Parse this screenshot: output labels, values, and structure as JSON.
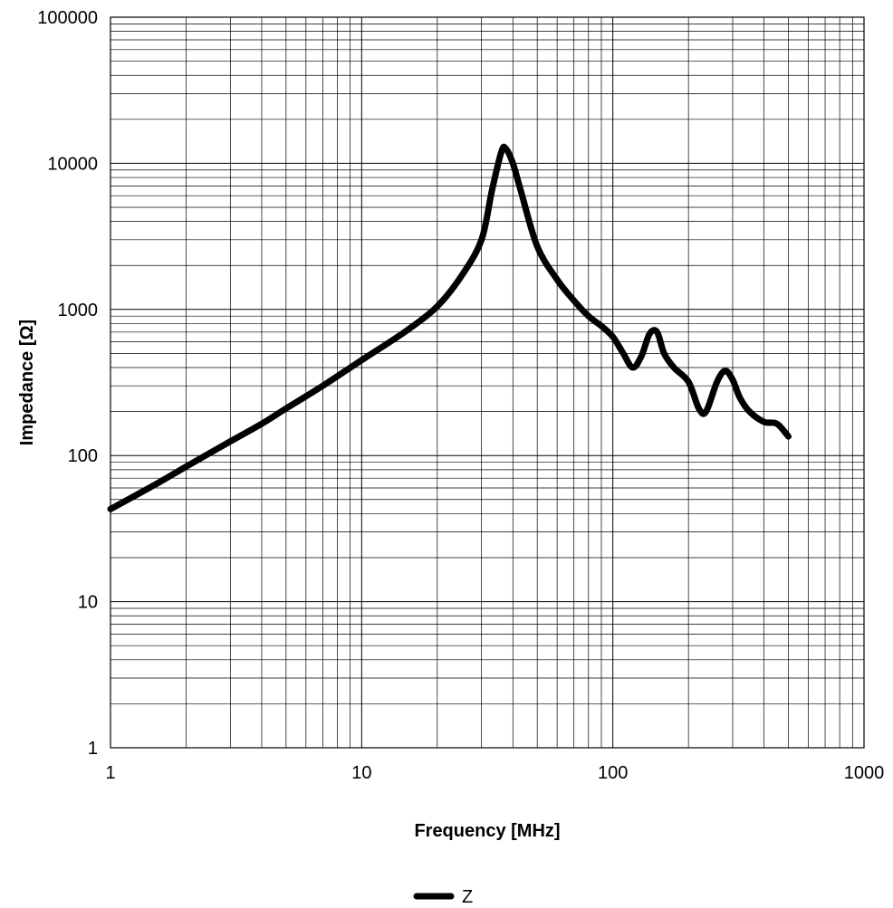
{
  "chart_data": {
    "type": "line",
    "title": "",
    "xlabel": "Frequency [MHz]",
    "ylabel": "Impedance [Ω]",
    "x_scale": "log",
    "y_scale": "log",
    "xlim": [
      1,
      1000
    ],
    "ylim": [
      1,
      100000
    ],
    "x_ticks": [
      1,
      10,
      100,
      1000
    ],
    "x_tick_labels": [
      "1",
      "10",
      "100",
      "1000"
    ],
    "y_ticks": [
      1,
      10,
      100,
      1000,
      10000,
      100000
    ],
    "y_tick_labels": [
      "1",
      "10",
      "100",
      "1000",
      "10000",
      "100000"
    ],
    "grid": true,
    "legend_position": "bottom-center",
    "series": [
      {
        "name": "Z",
        "color": "#000000",
        "points": [
          [
            1,
            43
          ],
          [
            1.5,
            63
          ],
          [
            2,
            84
          ],
          [
            3,
            125
          ],
          [
            4,
            165
          ],
          [
            5,
            210
          ],
          [
            7,
            300
          ],
          [
            10,
            450
          ],
          [
            15,
            710
          ],
          [
            20,
            1050
          ],
          [
            25,
            1700
          ],
          [
            30,
            3000
          ],
          [
            33,
            6500
          ],
          [
            36,
            12000
          ],
          [
            37.5,
            12600
          ],
          [
            40,
            10000
          ],
          [
            43,
            6500
          ],
          [
            50,
            2700
          ],
          [
            60,
            1600
          ],
          [
            70,
            1150
          ],
          [
            80,
            900
          ],
          [
            90,
            770
          ],
          [
            100,
            650
          ],
          [
            110,
            500
          ],
          [
            120,
            400
          ],
          [
            130,
            480
          ],
          [
            140,
            680
          ],
          [
            150,
            700
          ],
          [
            160,
            500
          ],
          [
            175,
            400
          ],
          [
            200,
            320
          ],
          [
            220,
            210
          ],
          [
            235,
            200
          ],
          [
            260,
            320
          ],
          [
            280,
            380
          ],
          [
            300,
            330
          ],
          [
            320,
            250
          ],
          [
            350,
            200
          ],
          [
            400,
            170
          ],
          [
            450,
            165
          ],
          [
            500,
            135
          ]
        ]
      }
    ]
  }
}
